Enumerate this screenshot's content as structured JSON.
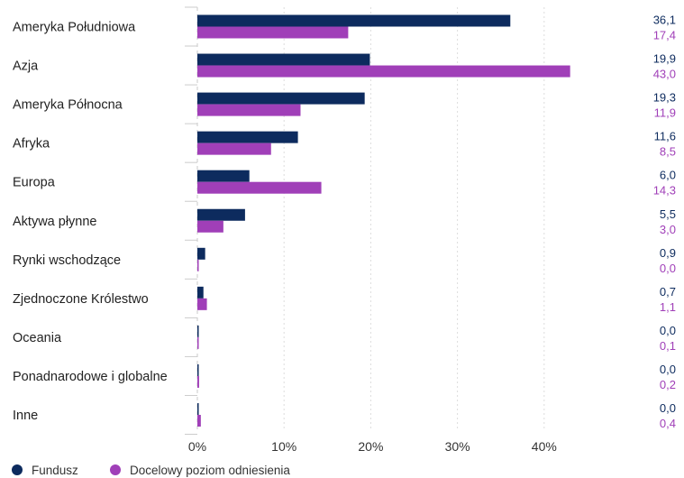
{
  "chart_data": {
    "type": "bar",
    "orientation": "horizontal",
    "categories": [
      "Ameryka Południowa",
      "Azja",
      "Ameryka Północna",
      "Afryka",
      "Europa",
      "Aktywa płynne",
      "Rynki wschodzące",
      "Zjednoczone Królestwo",
      "Oceania",
      "Ponadnarodowe i globalne",
      "Inne"
    ],
    "series": [
      {
        "name": "Fundusz",
        "color": "#0d2b5e",
        "values": [
          36.1,
          19.9,
          19.3,
          11.6,
          6.0,
          5.5,
          0.9,
          0.7,
          0.0,
          0.0,
          0.0
        ],
        "labels": [
          "36,1",
          "19,9",
          "19,3",
          "11,6",
          "6,0",
          "5,5",
          "0,9",
          "0,7",
          "0,0",
          "0,0",
          "0,0"
        ]
      },
      {
        "name": "Docelowy poziom odniesienia",
        "color": "#a03fb8",
        "values": [
          17.4,
          43.0,
          11.9,
          8.5,
          14.3,
          3.0,
          0.0,
          1.1,
          0.1,
          0.2,
          0.4
        ],
        "labels": [
          "17,4",
          "43,0",
          "11,9",
          "8,5",
          "14,3",
          "3,0",
          "0,0",
          "1,1",
          "0,1",
          "0,2",
          "0,4"
        ]
      }
    ],
    "xlim": [
      0,
      50
    ],
    "xticks": [
      0,
      10,
      20,
      30,
      40
    ],
    "xtick_labels": [
      "0%",
      "10%",
      "20%",
      "30%",
      "40%"
    ],
    "grid": "vertical",
    "legend_position": "bottom-left"
  }
}
